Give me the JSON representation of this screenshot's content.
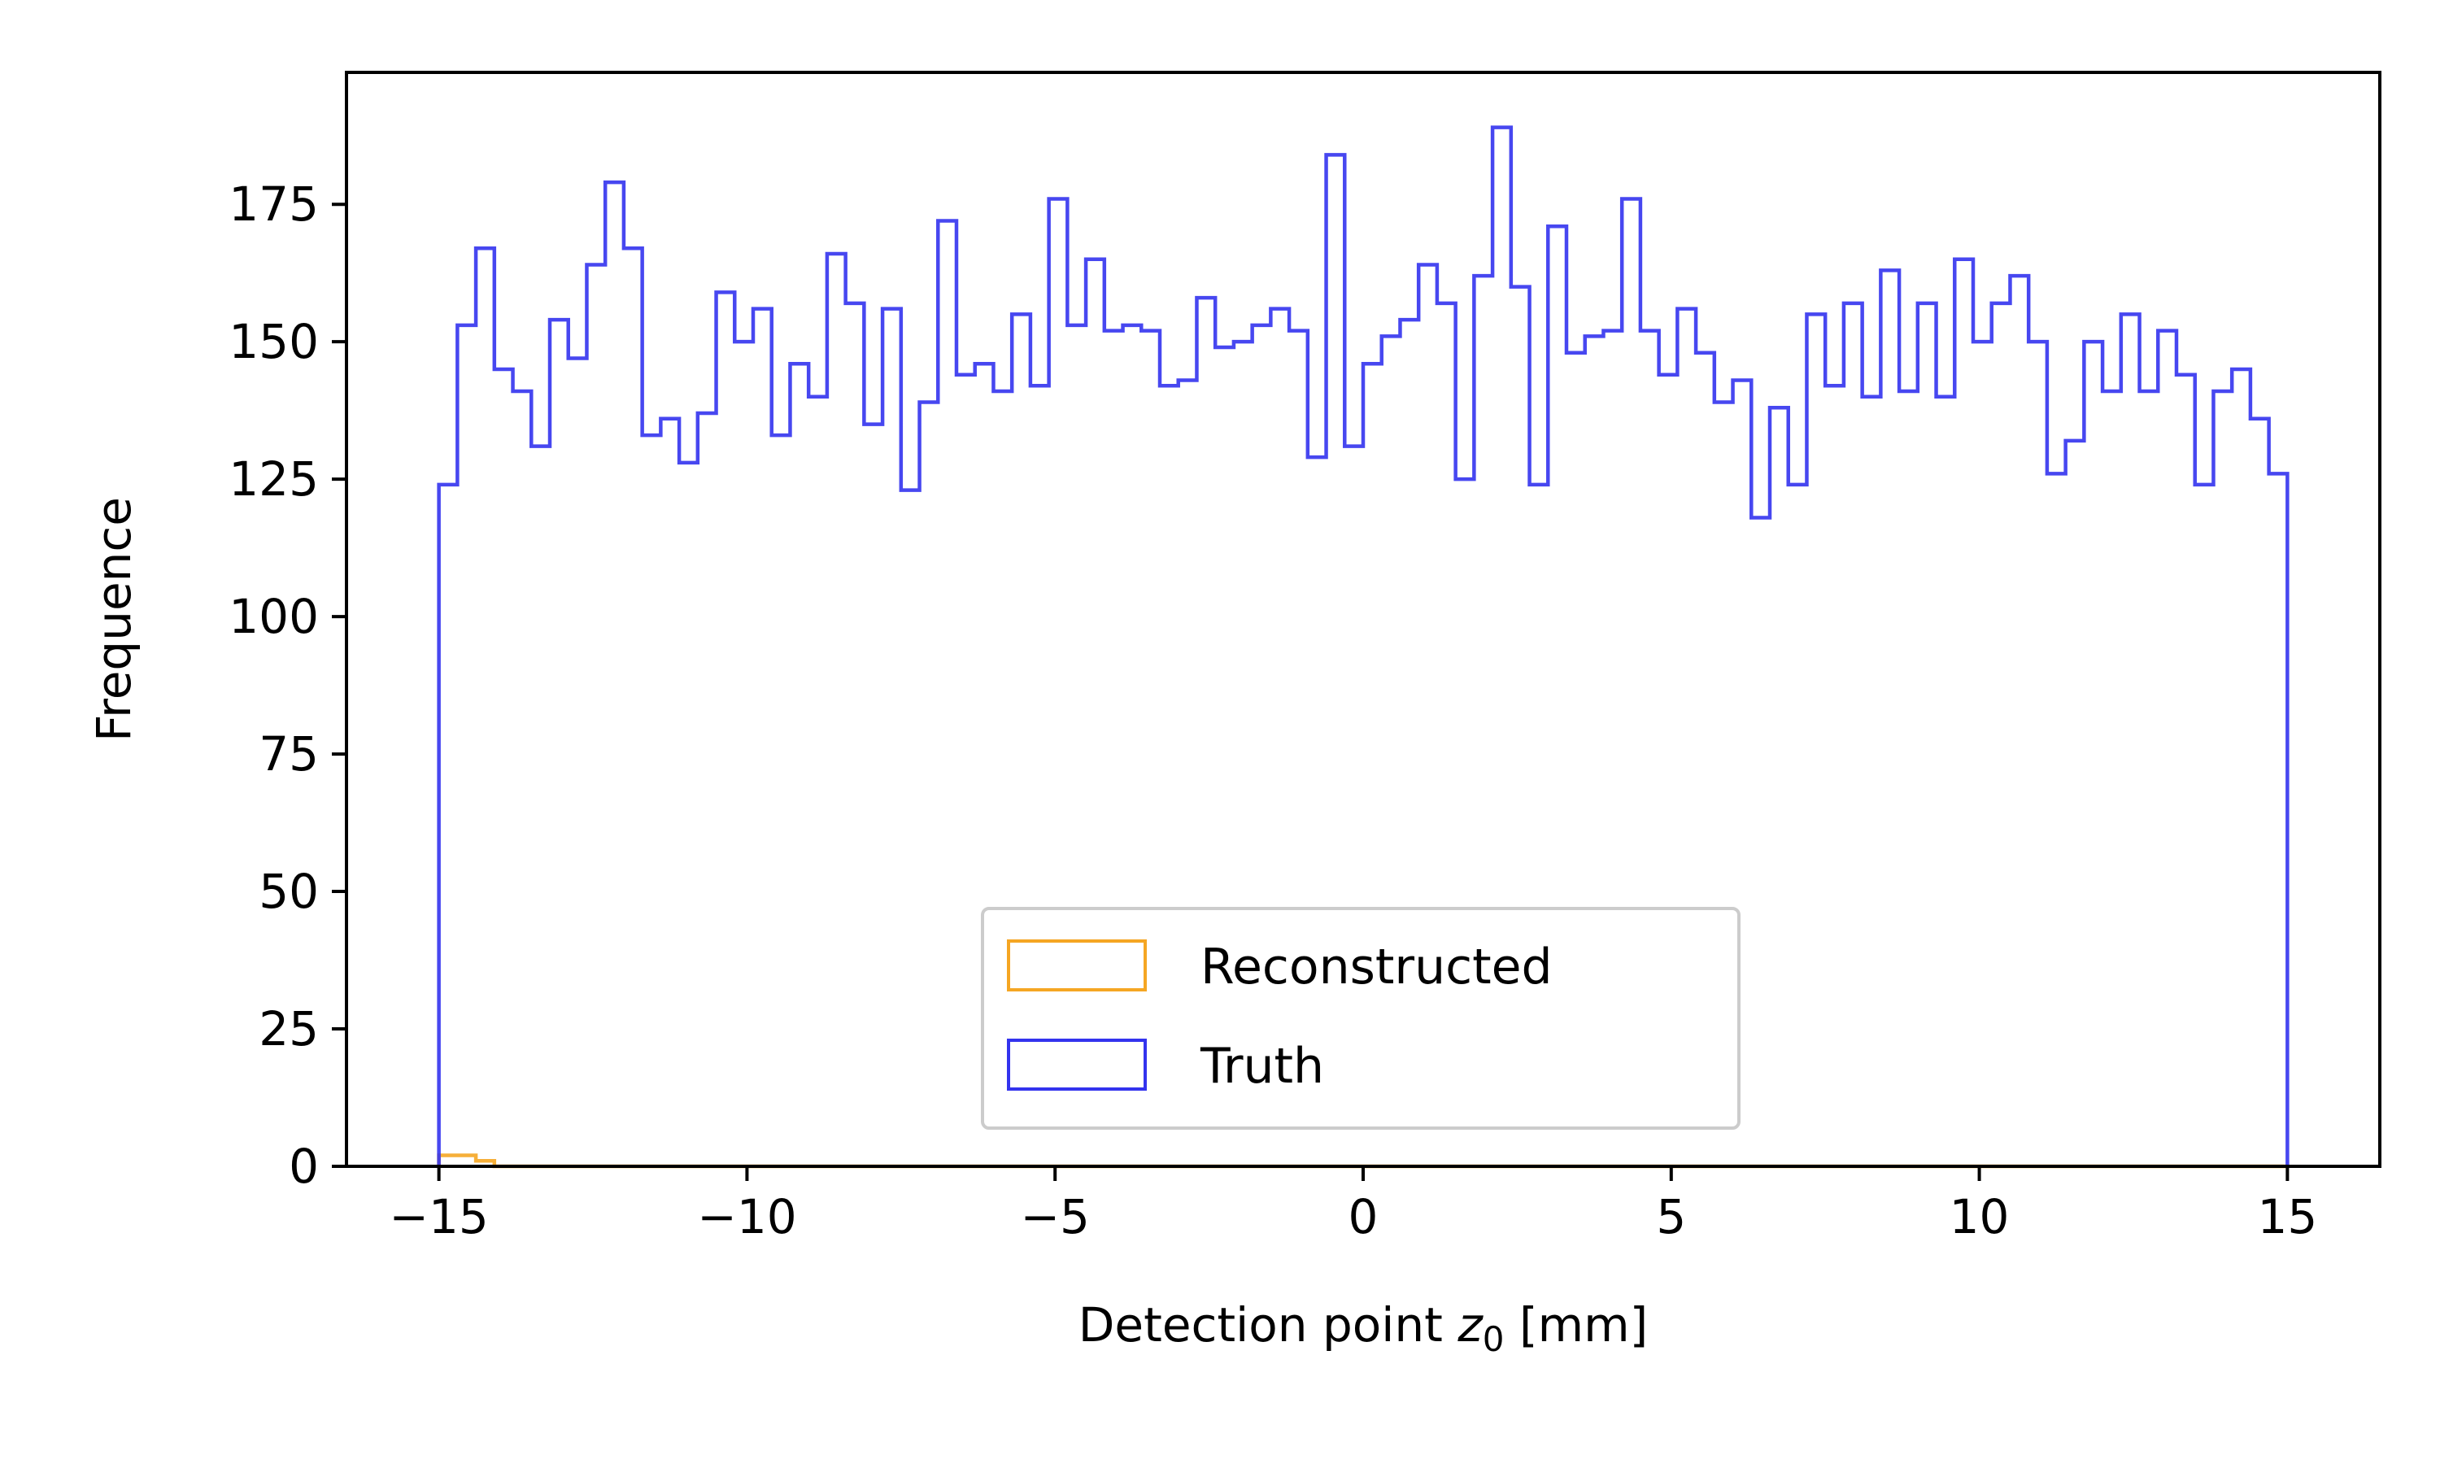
{
  "chart_data": {
    "type": "histogram",
    "xlabel": "Detection point z₀ [mm]",
    "xlabel_main": "Detection point ",
    "xlabel_var": "z",
    "xlabel_sub": "0",
    "xlabel_unit": " [mm]",
    "ylabel": "Frequence",
    "xlim": [
      -16.5,
      16.5
    ],
    "ylim": [
      0,
      199
    ],
    "x_ticks": [
      -15,
      -10,
      -5,
      0,
      5,
      10,
      15
    ],
    "x_tick_labels": [
      "−15",
      "−10",
      "−5",
      "0",
      "5",
      "10",
      "15"
    ],
    "y_ticks": [
      0,
      25,
      50,
      75,
      100,
      125,
      150,
      175
    ],
    "y_tick_labels": [
      "0",
      "25",
      "50",
      "75",
      "100",
      "125",
      "150",
      "175"
    ],
    "grid": false,
    "legend_position": "lower center",
    "bins": {
      "start": -15,
      "end": 15,
      "count": 100
    },
    "series": [
      {
        "name": "Reconstructed",
        "color": "#f5a623",
        "values": [
          2,
          2,
          1,
          0,
          0,
          0,
          0,
          0,
          0,
          0,
          0,
          0,
          0,
          0,
          0,
          0,
          0,
          0,
          0,
          0,
          0,
          0,
          0,
          0,
          0,
          0,
          0,
          0,
          0,
          0,
          0,
          0,
          0,
          0,
          0,
          0,
          0,
          0,
          0,
          0,
          0,
          0,
          0,
          0,
          0,
          0,
          0,
          0,
          0,
          0,
          0,
          0,
          0,
          0,
          0,
          0,
          0,
          0,
          0,
          0,
          0,
          0,
          0,
          0,
          0,
          0,
          0,
          0,
          0,
          0,
          0,
          0,
          0,
          0,
          0,
          0,
          0,
          0,
          0,
          0,
          0,
          0,
          0,
          0,
          0,
          0,
          0,
          0,
          0,
          0,
          0,
          0,
          0,
          0,
          0,
          0,
          0,
          0,
          0,
          0
        ]
      },
      {
        "name": "Truth",
        "color": "#3333ee",
        "values": [
          124,
          153,
          167,
          145,
          141,
          131,
          154,
          147,
          164,
          179,
          167,
          133,
          136,
          128,
          137,
          159,
          150,
          156,
          133,
          146,
          140,
          166,
          157,
          135,
          156,
          123,
          139,
          172,
          144,
          146,
          141,
          155,
          142,
          176,
          153,
          165,
          152,
          153,
          152,
          142,
          143,
          158,
          149,
          150,
          153,
          156,
          152,
          129,
          184,
          131,
          146,
          151,
          154,
          164,
          157,
          125,
          162,
          189,
          160,
          124,
          171,
          148,
          151,
          152,
          176,
          152,
          144,
          156,
          148,
          139,
          143,
          118,
          138,
          124,
          155,
          142,
          157,
          140,
          163,
          141,
          157,
          140,
          165,
          150,
          157,
          162,
          150,
          126,
          132,
          150,
          141,
          155,
          141,
          152,
          144,
          124,
          141,
          145,
          136,
          126
        ]
      }
    ]
  }
}
